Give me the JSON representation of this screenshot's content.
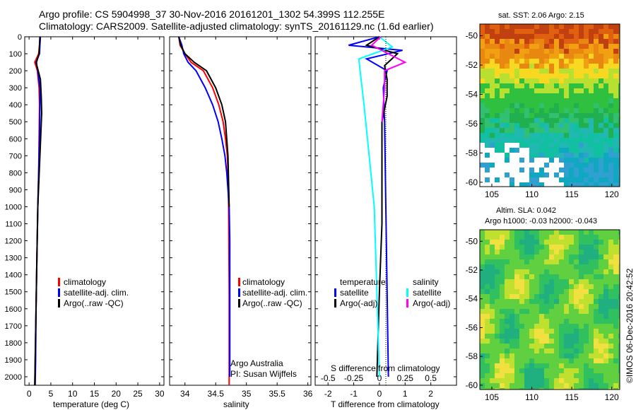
{
  "header": {
    "line1": "Argo profile: CS 5904998_37 30-Nov-2016 20161201_1302 54.399S 112.255E",
    "line2": "Climatology: CARS2009. Satellite-adjusted climatology: synTS_20161129.nc (1.6d earlier)"
  },
  "colors": {
    "climatology": "#ff0000",
    "satellite": "#0000ff",
    "argo": "#000000",
    "sat_salinity": "#00ffff",
    "argo_adj_salinity": "#ff00ff"
  },
  "chart_data": [
    {
      "type": "line",
      "xlabel": "temperature (deg C)",
      "ylabel": "",
      "xlim": [
        -1,
        31
      ],
      "ylim": [
        2050,
        0
      ],
      "xticks": [
        0,
        5,
        10,
        15,
        20,
        25,
        30
      ],
      "yticks": [
        0,
        100,
        200,
        300,
        400,
        500,
        600,
        700,
        800,
        900,
        1000,
        1100,
        1200,
        1300,
        1400,
        1500,
        1600,
        1700,
        1800,
        1900,
        2000
      ],
      "legend": [
        "climatology",
        "satellite-adj. clim.",
        "Argo(..raw -QC)"
      ],
      "series": [
        {
          "name": "climatology",
          "color": "#ff0000",
          "points": [
            [
              2.5,
              0
            ],
            [
              2.4,
              50
            ],
            [
              2.2,
              100
            ],
            [
              1.3,
              150
            ],
            [
              1.9,
              200
            ],
            [
              2.3,
              300
            ],
            [
              2.4,
              400
            ],
            [
              2.3,
              600
            ],
            [
              2.2,
              800
            ],
            [
              2.0,
              1000
            ],
            [
              1.8,
              1300
            ],
            [
              1.6,
              1600
            ],
            [
              1.4,
              1900
            ],
            [
              1.3,
              2050
            ]
          ]
        },
        {
          "name": "satellite-adj. clim.",
          "color": "#0000ff",
          "points": [
            [
              2.6,
              0
            ],
            [
              2.5,
              50
            ],
            [
              2.4,
              100
            ],
            [
              1.6,
              150
            ],
            [
              2.0,
              200
            ],
            [
              2.5,
              300
            ],
            [
              2.5,
              400
            ],
            [
              2.4,
              600
            ],
            [
              2.2,
              800
            ],
            [
              2.0,
              1000
            ],
            [
              1.8,
              1300
            ],
            [
              1.6,
              1600
            ],
            [
              1.5,
              1900
            ],
            [
              1.4,
              2050
            ]
          ]
        },
        {
          "name": "Argo(..raw -QC)",
          "color": "#000000",
          "points": [
            [
              2.5,
              0
            ],
            [
              2.4,
              50
            ],
            [
              2.3,
              100
            ],
            [
              1.7,
              150
            ],
            [
              1.8,
              170
            ],
            [
              2.6,
              250
            ],
            [
              2.8,
              350
            ],
            [
              2.9,
              450
            ],
            [
              2.0,
              1000
            ],
            [
              1.8,
              1300
            ],
            [
              1.6,
              1600
            ],
            [
              1.4,
              1900
            ],
            [
              1.3,
              2050
            ]
          ]
        }
      ]
    },
    {
      "type": "line",
      "xlabel": "salinity",
      "xlim": [
        33.75,
        36.05
      ],
      "ylim": [
        2050,
        0
      ],
      "xticks": [
        34,
        34.5,
        35,
        35.5,
        36
      ],
      "legend": [
        "climatology",
        "satellite-adj. clim.",
        "Argo(..raw -QC)"
      ],
      "annotation": [
        "Argo Australia",
        "PI: Susan Wijffels"
      ],
      "series": [
        {
          "name": "climatology",
          "color": "#ff0000",
          "points": [
            [
              33.9,
              0
            ],
            [
              33.92,
              50
            ],
            [
              34.0,
              100
            ],
            [
              34.1,
              150
            ],
            [
              34.3,
              200
            ],
            [
              34.45,
              300
            ],
            [
              34.55,
              400
            ],
            [
              34.62,
              500
            ],
            [
              34.66,
              600
            ],
            [
              34.69,
              700
            ],
            [
              34.7,
              800
            ],
            [
              34.71,
              1000
            ],
            [
              34.72,
              1500
            ],
            [
              34.72,
              2000
            ],
            [
              34.72,
              2050
            ]
          ]
        },
        {
          "name": "satellite-adj. clim.",
          "color": "#0000ff",
          "points": [
            [
              33.9,
              0
            ],
            [
              33.95,
              50
            ],
            [
              33.98,
              100
            ],
            [
              34.05,
              150
            ],
            [
              34.18,
              200
            ],
            [
              34.33,
              300
            ],
            [
              34.45,
              400
            ],
            [
              34.54,
              500
            ],
            [
              34.6,
              600
            ],
            [
              34.65,
              700
            ],
            [
              34.68,
              800
            ],
            [
              34.7,
              900
            ],
            [
              34.72,
              1000
            ],
            [
              34.73,
              1200
            ],
            [
              34.73,
              1500
            ],
            [
              34.73,
              2000
            ]
          ]
        },
        {
          "name": "Argo(..raw -QC)",
          "color": "#000000",
          "points": [
            [
              33.9,
              0
            ],
            [
              33.93,
              50
            ],
            [
              34.0,
              100
            ],
            [
              34.15,
              150
            ],
            [
              34.35,
              200
            ],
            [
              34.5,
              300
            ],
            [
              34.6,
              400
            ],
            [
              34.66,
              500
            ],
            [
              34.7,
              700
            ],
            [
              34.72,
              1000
            ]
          ]
        }
      ]
    },
    {
      "type": "line",
      "xlabel": "T difference from climatology",
      "xlabel_top": "S difference from climatology",
      "xlim": [
        -2.5,
        3
      ],
      "ylim": [
        2050,
        0
      ],
      "xticks": [
        -2,
        -1,
        0,
        1,
        2
      ],
      "xticks_top": [
        "-0.5",
        "-0.25",
        "0",
        "0.25",
        "0.5"
      ],
      "legend_groups": {
        "temperature": [
          "satellite",
          "Argo(-adj)"
        ],
        "salinity": [
          "satellite",
          "Argo(-adj)"
        ]
      },
      "series": [
        {
          "name": "temperature satellite",
          "color": "#0000ff",
          "points": [
            [
              0.0,
              0
            ],
            [
              -1.2,
              50
            ],
            [
              0.9,
              80
            ],
            [
              -0.5,
              130
            ],
            [
              0.3,
              200
            ],
            [
              0.15,
              300
            ],
            [
              0.2,
              500
            ],
            [
              0.25,
              1000
            ],
            [
              0.3,
              1500
            ],
            [
              0.35,
              2000
            ]
          ]
        },
        {
          "name": "temperature Argo(-adj)",
          "color": "#000000",
          "points": [
            [
              0.0,
              0
            ],
            [
              -0.5,
              50
            ],
            [
              0.7,
              100
            ],
            [
              0.2,
              170
            ],
            [
              0.3,
              250
            ],
            [
              0.3,
              350
            ],
            [
              0.1,
              500
            ],
            [
              0.1,
              1100
            ],
            [
              0.0,
              1500
            ],
            [
              -0.1,
              2000
            ]
          ]
        },
        {
          "name": "salinity satellite",
          "color": "#00ffff",
          "points": [
            [
              0.0,
              0
            ],
            [
              0.5,
              60
            ],
            [
              -0.8,
              130
            ],
            [
              -0.75,
              200
            ],
            [
              -0.6,
              400
            ],
            [
              -0.4,
              700
            ],
            [
              -0.2,
              1000
            ],
            [
              -0.1,
              1500
            ],
            [
              0.0,
              2000
            ]
          ]
        },
        {
          "name": "salinity Argo(-adj)",
          "color": "#ff00ff",
          "points": [
            [
              0.05,
              0
            ],
            [
              -0.3,
              50
            ],
            [
              1.0,
              150
            ],
            [
              0.2,
              200
            ],
            [
              0.2,
              300
            ],
            [
              0.1,
              500
            ]
          ]
        }
      ]
    }
  ],
  "maps": {
    "sst": {
      "title": "sat. SST: 2.06 Argo: 2.15",
      "xticks": [
        105,
        110,
        115,
        120
      ],
      "yticks": [
        -50,
        -52,
        -54,
        -56,
        -58,
        -60
      ]
    },
    "sla": {
      "title": "Altim. SLA: 0.042",
      "subtitle": "Argo h1000: -0.03 h2000: -0.043",
      "xticks": [
        105,
        110,
        115,
        120
      ],
      "yticks": [
        -50,
        -52,
        -54,
        -56,
        -58,
        -60
      ]
    }
  },
  "credit": "©IMOS 06-Dec-2016 20:42:52"
}
